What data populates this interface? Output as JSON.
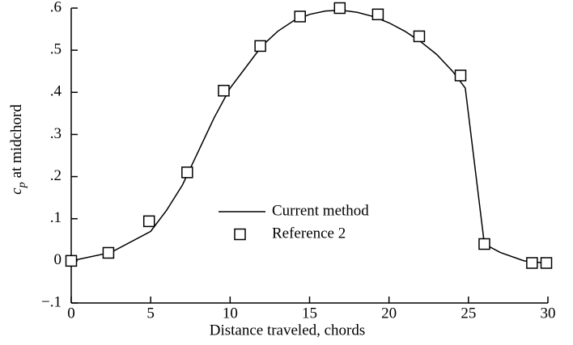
{
  "chart_data": {
    "type": "line",
    "x_label": "Distance traveled, chords",
    "y_label": {
      "symbol": "c",
      "subscript": "p",
      "text": "at midchord"
    },
    "xlim": [
      0,
      30
    ],
    "xticks": [
      0,
      5,
      10,
      15,
      20,
      25,
      30
    ],
    "ylim": [
      -0.1,
      0.6
    ],
    "yticks": [
      {
        "value": -0.1,
        "label": "−.1"
      },
      {
        "value": 0,
        "label": "0"
      },
      {
        "value": 0.1,
        "label": ".1"
      },
      {
        "value": 0.2,
        "label": ".2"
      },
      {
        "value": 0.3,
        "label": ".3"
      },
      {
        "value": 0.4,
        "label": ".4"
      },
      {
        "value": 0.5,
        "label": ".5"
      },
      {
        "value": 0.6,
        "label": ".6"
      }
    ],
    "grid": false,
    "series": [
      {
        "name": "Current method",
        "type": "line",
        "color": "#000000",
        "x": [
          0,
          2.5,
          5,
          6,
          7,
          8,
          9,
          10,
          11,
          12,
          13,
          14,
          15,
          16,
          17,
          18,
          19,
          20,
          21,
          22,
          23,
          24,
          24.8,
          26,
          27,
          28.5,
          29.8
        ],
        "values": [
          0,
          0.02,
          0.07,
          0.12,
          0.18,
          0.26,
          0.34,
          0.41,
          0.46,
          0.51,
          0.545,
          0.57,
          0.585,
          0.593,
          0.595,
          0.59,
          0.58,
          0.565,
          0.545,
          0.52,
          0.49,
          0.45,
          0.41,
          0.04,
          0.02,
          0.0,
          -0.005
        ]
      },
      {
        "name": "Reference 2",
        "type": "scatter",
        "color": "#000000",
        "x": [
          0,
          2.34,
          4.9,
          7.3,
          9.6,
          11.9,
          14.4,
          16.9,
          19.3,
          21.9,
          24.5,
          26.0,
          29.0,
          29.9
        ],
        "values": [
          0,
          0.019,
          0.094,
          0.21,
          0.404,
          0.51,
          0.58,
          0.6,
          0.585,
          0.533,
          0.44,
          0.04,
          -0.005,
          -0.005
        ]
      }
    ]
  }
}
